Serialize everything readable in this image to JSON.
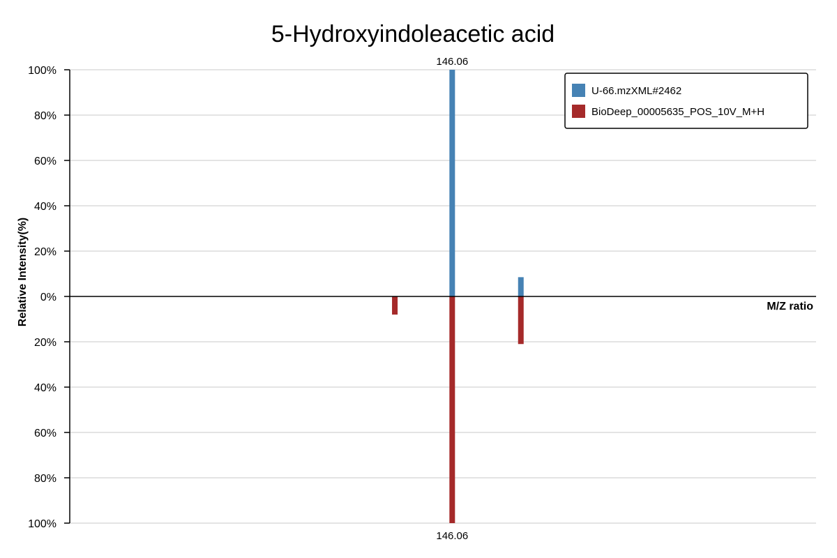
{
  "chart_data": {
    "type": "bar",
    "title": "5-Hydroxyindoleacetic acid",
    "xlabel": "M/Z ratio",
    "ylabel": "Relative Intensity(%)",
    "ylim": [
      -100,
      100
    ],
    "y_tick_labels": [
      "100%",
      "80%",
      "60%",
      "40%",
      "20%",
      "0%",
      "20%",
      "40%",
      "60%",
      "80%",
      "100%"
    ],
    "y_tick_values": [
      100,
      80,
      60,
      40,
      20,
      0,
      -20,
      -40,
      -60,
      -80,
      -100
    ],
    "grid": true,
    "legend_position": "top-right",
    "series": [
      {
        "name": "U-66.mzXML#2462",
        "color": "#4682b4",
        "direction": "up",
        "peaks": [
          {
            "mz": 146.06,
            "intensity": 100,
            "label": "146.06"
          },
          {
            "mz": 150.2,
            "intensity": 8.5,
            "label": ""
          }
        ]
      },
      {
        "name": "BioDeep_00005635_POS_10V_M+H",
        "color": "#a52a2a",
        "direction": "down",
        "peaks": [
          {
            "mz": 142.6,
            "intensity": 8,
            "label": ""
          },
          {
            "mz": 146.06,
            "intensity": 100,
            "label": "146.06"
          },
          {
            "mz": 150.2,
            "intensity": 21,
            "label": ""
          }
        ]
      }
    ],
    "xlim": [
      123.0,
      168.0
    ]
  }
}
